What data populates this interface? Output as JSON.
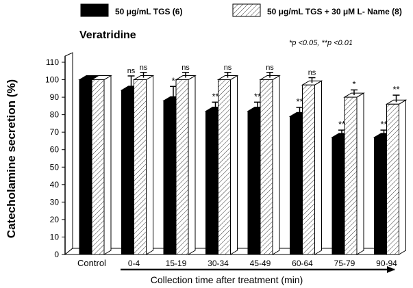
{
  "chart_data": {
    "type": "bar",
    "title": "Veratridine",
    "xlabel": "Collection time after treatment (min)",
    "ylabel": "Catecholamine secretion (%)",
    "ylim": [
      0,
      110
    ],
    "yticks": [
      0,
      10,
      20,
      30,
      40,
      50,
      60,
      70,
      80,
      90,
      100,
      110
    ],
    "categories": [
      "Control",
      "0-4",
      "15-19",
      "30-34",
      "45-49",
      "60-64",
      "75-79",
      "90-94"
    ],
    "series": [
      {
        "name": "50 μg/mL TGS (6)",
        "fill": "solid",
        "color": "#000000",
        "values": [
          100,
          94,
          88,
          82,
          82,
          79,
          67,
          67
        ],
        "errors": [
          0,
          7,
          7,
          4,
          4,
          4,
          3,
          3
        ],
        "significance": [
          "",
          "ns",
          "*",
          "**",
          "**",
          "**",
          "**",
          "**"
        ]
      },
      {
        "name": "50 μg/mL TGS + 30 μM L- Name (8)",
        "fill": "hatched",
        "color": "#ffffff",
        "values": [
          100,
          100,
          100,
          100,
          100,
          97,
          90,
          86
        ],
        "errors": [
          0,
          3,
          3,
          3,
          3,
          3,
          3,
          4
        ],
        "significance": [
          "",
          "ns",
          "ns",
          "ns",
          "ns",
          "ns",
          "*",
          "**"
        ]
      }
    ],
    "legend": "top",
    "annotation": "*p <0.05,  **p <0.01",
    "grid": false
  }
}
